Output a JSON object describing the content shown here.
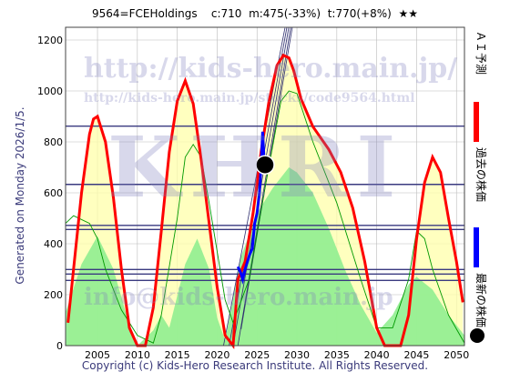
{
  "header": {
    "code_name": "9564=FCEHoldings",
    "current": "c:710",
    "min": "m:475(-33%)",
    "target": "t:770(+8%)",
    "stars": "★★"
  },
  "side_label": "Generated on Monday 2026/1/5.",
  "footer": "Copyright (c) Kids-Hero Research Institute. All Rights Reserved.",
  "watermarks": {
    "url_big": "http://kids-hero.main.jp/",
    "url_small": "http://kids-hero.main.jp/stocks/code9564.html",
    "logo": "KHRI",
    "email": "info@kids-hero.main.jp"
  },
  "legend": {
    "ai": "ＡＩ予測",
    "past": "過去の株価",
    "latest": "最新の株価"
  },
  "colors": {
    "ai": "#ff0000",
    "past": "#0000ff",
    "latest": "#000000",
    "green_fill": "#90ee90",
    "yellow_fill": "#ffffaa",
    "hline": "#3a3a80"
  },
  "chart_data": {
    "type": "line",
    "xlim": [
      2001,
      2051
    ],
    "ylim": [
      0,
      1250
    ],
    "x_ticks": [
      2005,
      2010,
      2015,
      2020,
      2025,
      2030,
      2035,
      2040,
      2045,
      2050
    ],
    "y_ticks": [
      0,
      200,
      400,
      600,
      800,
      1000,
      1200
    ],
    "grid": true,
    "horizontal_levels": [
      862,
      633,
      472,
      456,
      299,
      281,
      256
    ],
    "latest_point": {
      "x": 2026.0,
      "y": 710
    },
    "series": [
      {
        "name": "ＡＩ予測",
        "color": "#ff0000",
        "x": [
          2001.3,
          2002,
          2003,
          2004,
          2004.5,
          2005,
          2006,
          2007,
          2008,
          2009,
          2010,
          2011,
          2012,
          2013,
          2014,
          2015,
          2016,
          2017,
          2018,
          2019,
          2020,
          2021,
          2022,
          2022.6,
          2023.5,
          2024.5,
          2025.5,
          2026.5,
          2027.5,
          2028.3,
          2029,
          2029.6,
          2030.5,
          2032,
          2034,
          2035.5,
          2037,
          2038.5,
          2040,
          2041,
          2042,
          2043,
          2044,
          2045,
          2046,
          2047,
          2048,
          2049,
          2050,
          2050.8
        ],
        "y": [
          90,
          300,
          600,
          830,
          890,
          900,
          800,
          580,
          300,
          70,
          0,
          0,
          150,
          450,
          760,
          960,
          1040,
          950,
          730,
          480,
          230,
          40,
          0,
          260,
          330,
          520,
          760,
          960,
          1100,
          1140,
          1130,
          1080,
          970,
          860,
          770,
          680,
          540,
          330,
          70,
          0,
          0,
          0,
          120,
          420,
          640,
          740,
          680,
          500,
          330,
          170
        ]
      },
      {
        "name": "過去の株価",
        "color": "#0000ff",
        "x": [
          2022.6,
          2022.9,
          2023.2,
          2023.5,
          2023.8,
          2024.1,
          2024.4,
          2024.7,
          2025.0,
          2025.3,
          2025.5,
          2025.7,
          2025.8,
          2025.9,
          2026.0
        ],
        "y": [
          310,
          290,
          260,
          300,
          330,
          360,
          380,
          480,
          520,
          600,
          700,
          840,
          780,
          720,
          710
        ]
      },
      {
        "name": "green_area",
        "color": "#90ee90",
        "x": [
          2001,
          2003,
          2005,
          2007,
          2009,
          2010,
          2012,
          2013,
          2014,
          2016,
          2017.5,
          2019,
          2020,
          2021,
          2023,
          2025,
          2027,
          2029,
          2030,
          2032,
          2034,
          2036,
          2038,
          2040,
          2042,
          2044,
          2045,
          2047,
          2049,
          2051
        ],
        "y": [
          130,
          320,
          430,
          300,
          80,
          0,
          60,
          120,
          70,
          320,
          420,
          300,
          110,
          20,
          350,
          520,
          620,
          700,
          680,
          600,
          460,
          300,
          160,
          50,
          120,
          240,
          270,
          220,
          120,
          40
        ]
      },
      {
        "name": "green_line",
        "color": "#009900",
        "x": [
          2001,
          2002,
          2004,
          2005,
          2006,
          2008,
          2010,
          2012,
          2013,
          2015,
          2016,
          2017,
          2018,
          2019,
          2021,
          2022,
          2024,
          2026,
          2028,
          2029,
          2030,
          2032,
          2035,
          2038,
          2040,
          2042,
          2044,
          2045,
          2046,
          2047,
          2049,
          2051
        ],
        "y": [
          480,
          510,
          480,
          420,
          300,
          140,
          40,
          10,
          120,
          500,
          740,
          790,
          740,
          560,
          180,
          90,
          260,
          620,
          960,
          1000,
          990,
          800,
          560,
          260,
          70,
          70,
          260,
          450,
          420,
          300,
          120,
          10
        ]
      }
    ]
  }
}
